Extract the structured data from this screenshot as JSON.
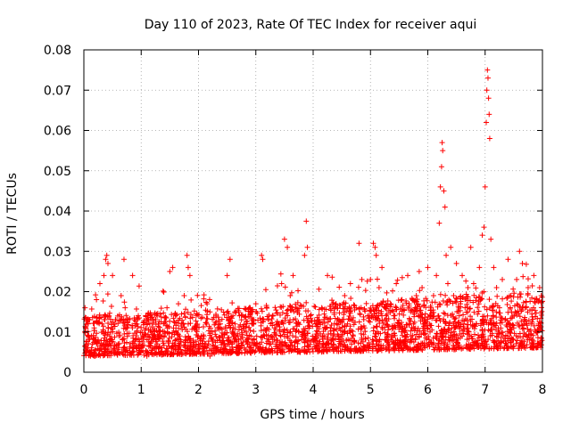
{
  "chart_data": {
    "type": "scatter",
    "title": "Day 110 of 2023, Rate Of TEC Index for receiver aqui",
    "xlabel": "GPS time / hours",
    "ylabel": "ROTI / TECUs",
    "xlim": [
      0,
      8
    ],
    "ylim": [
      0,
      0.08
    ],
    "x_ticks": [
      "0",
      "1",
      "2",
      "3",
      "4",
      "5",
      "6",
      "7",
      "8"
    ],
    "y_ticks": [
      "0",
      "0.01",
      "0.02",
      "0.03",
      "0.04",
      "0.05",
      "0.06",
      "0.07",
      "0.08"
    ],
    "grid": true,
    "marker": "+",
    "color": "#ff0000",
    "series": [
      {
        "name": "ROTI",
        "points": [
          [
            0.02,
            0.016
          ],
          [
            0.05,
            0.006
          ],
          [
            0.08,
            0.009
          ],
          [
            0.1,
            0.013
          ],
          [
            0.12,
            0.005
          ],
          [
            0.15,
            0.007
          ],
          [
            0.18,
            0.011
          ],
          [
            0.2,
            0.004
          ],
          [
            0.22,
            0.018
          ],
          [
            0.25,
            0.008
          ],
          [
            0.28,
            0.022
          ],
          [
            0.3,
            0.006
          ],
          [
            0.32,
            0.012
          ],
          [
            0.35,
            0.024
          ],
          [
            0.38,
            0.028
          ],
          [
            0.4,
            0.029
          ],
          [
            0.42,
            0.027
          ],
          [
            0.45,
            0.009
          ],
          [
            0.48,
            0.005
          ],
          [
            0.5,
            0.024
          ],
          [
            0.55,
            0.013
          ],
          [
            0.6,
            0.007
          ],
          [
            0.65,
            0.019
          ],
          [
            0.7,
            0.028
          ],
          [
            0.72,
            0.016
          ],
          [
            0.75,
            0.011
          ],
          [
            0.8,
            0.005
          ],
          [
            0.85,
            0.024
          ],
          [
            0.88,
            0.013
          ],
          [
            0.9,
            0.008
          ],
          [
            0.95,
            0.014
          ],
          [
            1.0,
            0.006
          ],
          [
            1.05,
            0.009
          ],
          [
            1.1,
            0.004
          ],
          [
            1.15,
            0.012
          ],
          [
            1.2,
            0.006
          ],
          [
            1.25,
            0.008
          ],
          [
            1.3,
            0.012
          ],
          [
            1.35,
            0.005
          ],
          [
            1.4,
            0.009
          ],
          [
            1.45,
            0.016
          ],
          [
            1.5,
            0.025
          ],
          [
            1.55,
            0.026
          ],
          [
            1.6,
            0.008
          ],
          [
            1.65,
            0.017
          ],
          [
            1.7,
            0.012
          ],
          [
            1.75,
            0.019
          ],
          [
            1.8,
            0.029
          ],
          [
            1.82,
            0.026
          ],
          [
            1.85,
            0.024
          ],
          [
            1.9,
            0.006
          ],
          [
            1.95,
            0.011
          ],
          [
            2.0,
            0.005
          ],
          [
            2.05,
            0.009
          ],
          [
            2.1,
            0.006
          ],
          [
            2.15,
            0.017
          ],
          [
            2.2,
            0.004
          ],
          [
            2.25,
            0.008
          ],
          [
            2.3,
            0.006
          ],
          [
            2.35,
            0.005
          ],
          [
            2.4,
            0.009
          ],
          [
            2.45,
            0.007
          ],
          [
            2.5,
            0.024
          ],
          [
            2.55,
            0.028
          ],
          [
            2.6,
            0.014
          ],
          [
            2.65,
            0.005
          ],
          [
            2.7,
            0.008
          ],
          [
            2.75,
            0.013
          ],
          [
            2.8,
            0.006
          ],
          [
            2.85,
            0.007
          ],
          [
            2.9,
            0.005
          ],
          [
            2.95,
            0.008
          ],
          [
            3.0,
            0.017
          ],
          [
            3.05,
            0.006
          ],
          [
            3.1,
            0.029
          ],
          [
            3.12,
            0.028
          ],
          [
            3.15,
            0.009
          ],
          [
            3.2,
            0.011
          ],
          [
            3.25,
            0.005
          ],
          [
            3.3,
            0.014
          ],
          [
            3.35,
            0.007
          ],
          [
            3.4,
            0.012
          ],
          [
            3.45,
            0.022
          ],
          [
            3.5,
            0.033
          ],
          [
            3.55,
            0.031
          ],
          [
            3.6,
            0.019
          ],
          [
            3.65,
            0.024
          ],
          [
            3.7,
            0.016
          ],
          [
            3.75,
            0.01
          ],
          [
            3.8,
            0.009
          ],
          [
            3.85,
            0.029
          ],
          [
            3.88,
            0.0375
          ],
          [
            3.9,
            0.031
          ],
          [
            3.95,
            0.014
          ],
          [
            4.0,
            0.008
          ],
          [
            4.05,
            0.012
          ],
          [
            4.1,
            0.006
          ],
          [
            4.15,
            0.016
          ],
          [
            4.2,
            0.009
          ],
          [
            4.25,
            0.024
          ],
          [
            4.3,
            0.011
          ],
          [
            4.35,
            0.007
          ],
          [
            4.4,
            0.017
          ],
          [
            4.45,
            0.013
          ],
          [
            4.5,
            0.009
          ],
          [
            4.55,
            0.019
          ],
          [
            4.6,
            0.012
          ],
          [
            4.65,
            0.022
          ],
          [
            4.7,
            0.009
          ],
          [
            4.75,
            0.016
          ],
          [
            4.8,
            0.032
          ],
          [
            4.85,
            0.023
          ],
          [
            4.9,
            0.011
          ],
          [
            4.95,
            0.014
          ],
          [
            5.0,
            0.023
          ],
          [
            5.05,
            0.032
          ],
          [
            5.08,
            0.031
          ],
          [
            5.1,
            0.029
          ],
          [
            5.15,
            0.021
          ],
          [
            5.2,
            0.026
          ],
          [
            5.25,
            0.013
          ],
          [
            5.3,
            0.009
          ],
          [
            5.35,
            0.017
          ],
          [
            5.4,
            0.011
          ],
          [
            5.45,
            0.022
          ],
          [
            5.5,
            0.012
          ],
          [
            5.55,
            0.018
          ],
          [
            5.6,
            0.009
          ],
          [
            5.65,
            0.024
          ],
          [
            5.7,
            0.015
          ],
          [
            5.75,
            0.012
          ],
          [
            5.8,
            0.019
          ],
          [
            5.85,
            0.025
          ],
          [
            5.9,
            0.021
          ],
          [
            5.95,
            0.011
          ],
          [
            6.0,
            0.026
          ],
          [
            6.05,
            0.014
          ],
          [
            6.1,
            0.019
          ],
          [
            6.15,
            0.024
          ],
          [
            6.2,
            0.037
          ],
          [
            6.22,
            0.046
          ],
          [
            6.24,
            0.051
          ],
          [
            6.25,
            0.057
          ],
          [
            6.26,
            0.055
          ],
          [
            6.28,
            0.045
          ],
          [
            6.3,
            0.041
          ],
          [
            6.32,
            0.029
          ],
          [
            6.35,
            0.022
          ],
          [
            6.4,
            0.031
          ],
          [
            6.45,
            0.019
          ],
          [
            6.5,
            0.027
          ],
          [
            6.55,
            0.014
          ],
          [
            6.6,
            0.024
          ],
          [
            6.65,
            0.016
          ],
          [
            6.7,
            0.021
          ],
          [
            6.75,
            0.031
          ],
          [
            6.8,
            0.022
          ],
          [
            6.85,
            0.012
          ],
          [
            6.9,
            0.026
          ],
          [
            6.95,
            0.034
          ],
          [
            6.98,
            0.036
          ],
          [
            7.0,
            0.046
          ],
          [
            7.02,
            0.062
          ],
          [
            7.03,
            0.07
          ],
          [
            7.04,
            0.075
          ],
          [
            7.05,
            0.073
          ],
          [
            7.06,
            0.068
          ],
          [
            7.07,
            0.064
          ],
          [
            7.08,
            0.058
          ],
          [
            7.1,
            0.033
          ],
          [
            7.15,
            0.026
          ],
          [
            7.2,
            0.021
          ],
          [
            7.25,
            0.016
          ],
          [
            7.3,
            0.023
          ],
          [
            7.35,
            0.013
          ],
          [
            7.4,
            0.028
          ],
          [
            7.45,
            0.019
          ],
          [
            7.5,
            0.011
          ],
          [
            7.55,
            0.023
          ],
          [
            7.6,
            0.03
          ],
          [
            7.65,
            0.027
          ],
          [
            7.7,
            0.016
          ],
          [
            7.75,
            0.021
          ],
          [
            7.8,
            0.012
          ],
          [
            7.85,
            0.024
          ],
          [
            7.9,
            0.018
          ],
          [
            7.95,
            0.011
          ],
          [
            7.98,
            0.019
          ]
        ]
      }
    ],
    "note": "Dense background band of thousands of points (approximately 0.002-0.015 TECU/s) across 0-8 h is drawn generatively by the rendering script."
  }
}
